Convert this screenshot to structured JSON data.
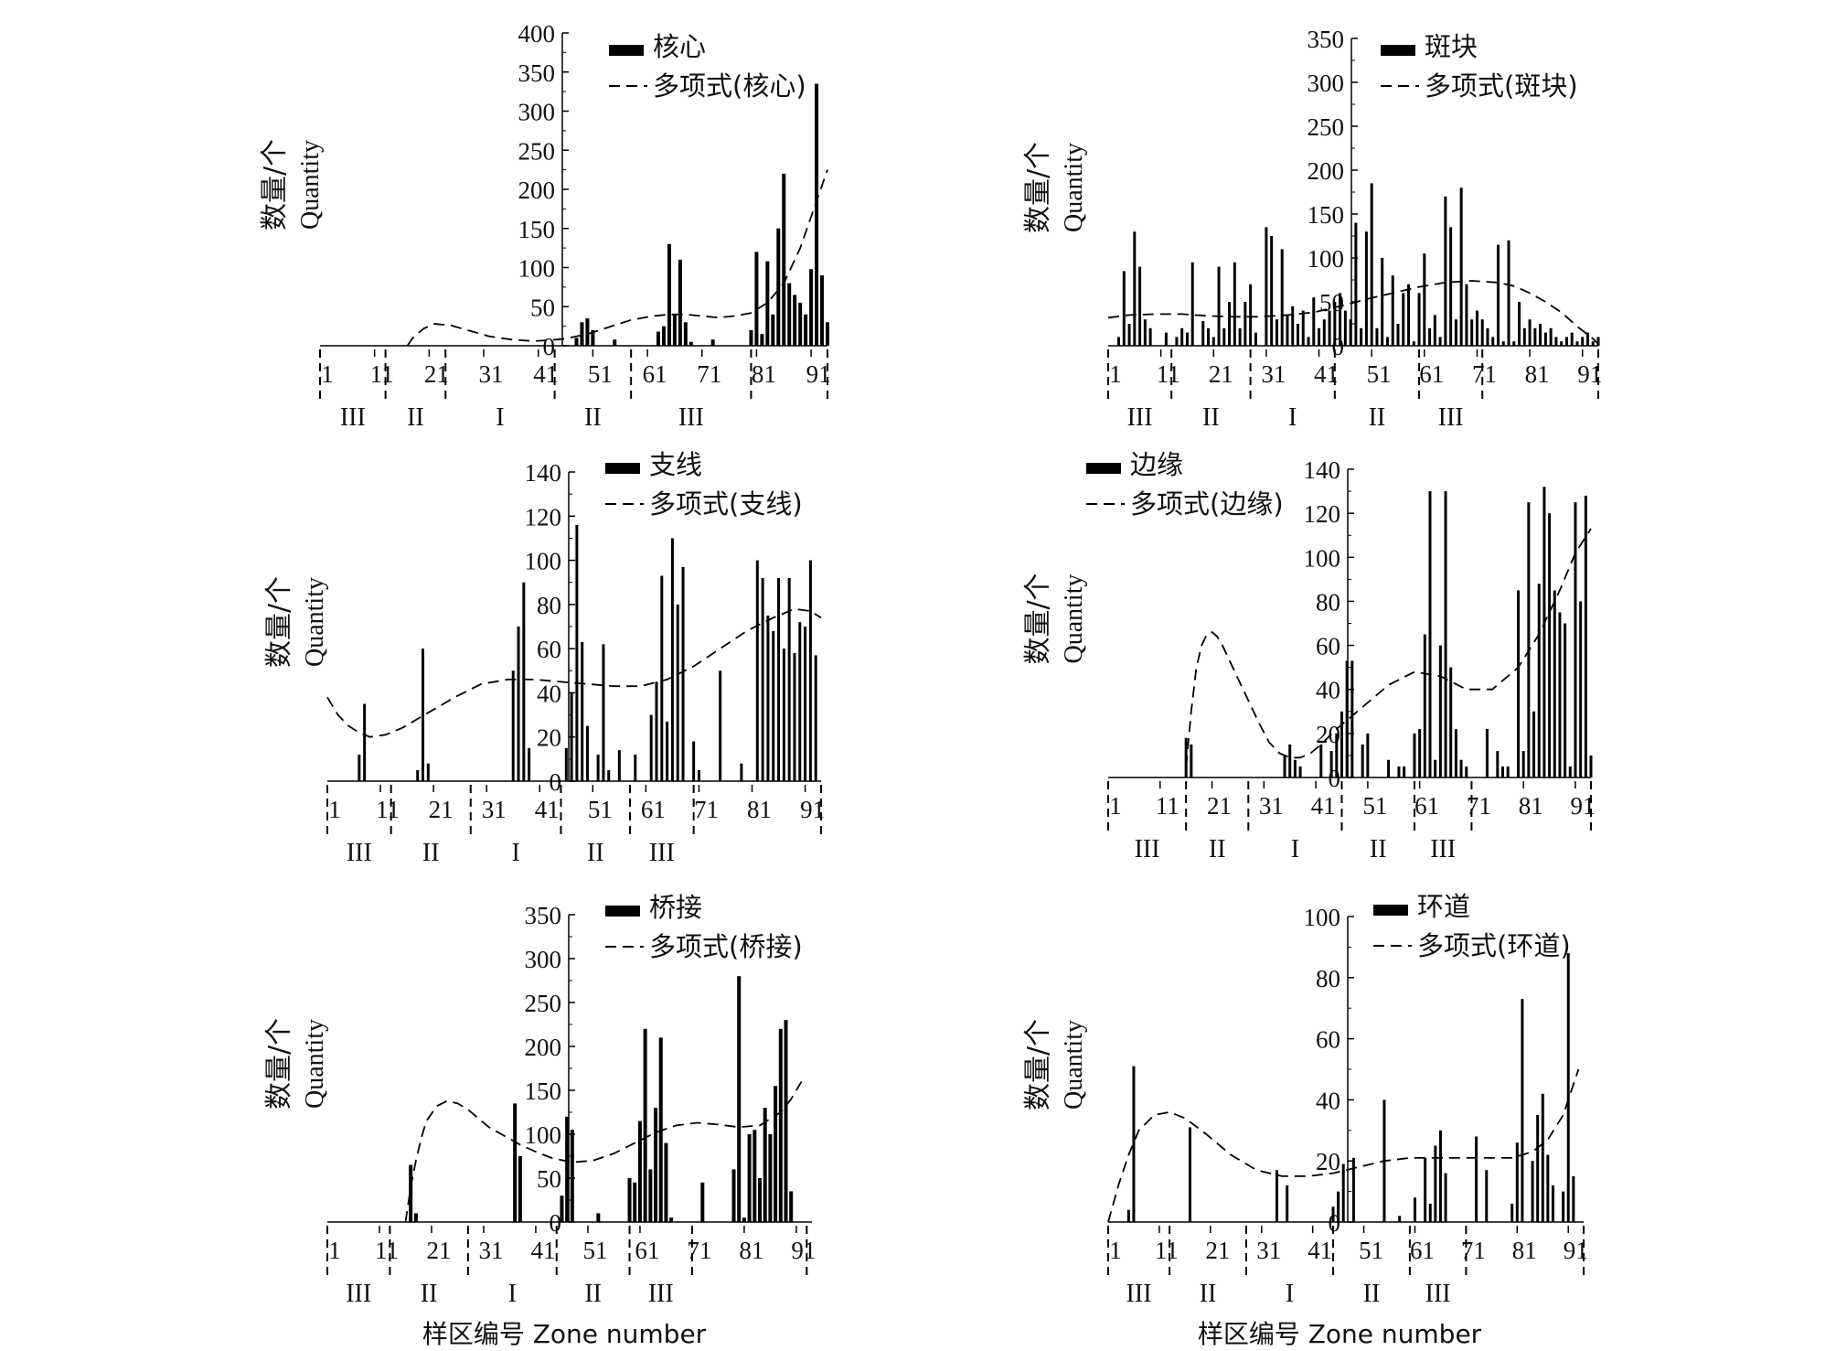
{
  "figure": {
    "xlabel": "样区编号 Zone number",
    "ylabel_cn": "数量/个",
    "ylabel_en": "Quantity"
  },
  "colors": {
    "bar": "#000000",
    "trend": "#000000",
    "axis": "#000000"
  },
  "chart_data": [
    {
      "type": "bar",
      "bar_label": "核心",
      "trend_label": "多项式(核心)",
      "ylim": [
        0,
        400
      ],
      "yticks": [
        "0",
        "50",
        "100",
        "150",
        "200",
        "250",
        "300",
        "350",
        "400"
      ],
      "xticks": [
        "1",
        "11",
        "21",
        "31",
        "41",
        "51",
        "61",
        "71",
        "81",
        "91"
      ],
      "zone_labels": [
        "III",
        "II",
        "I",
        "II",
        "III"
      ],
      "zone_starts": [
        1,
        13,
        24,
        44,
        58,
        80,
        94
      ],
      "x": [
        48,
        49,
        50,
        51,
        55,
        63,
        64,
        65,
        66,
        67,
        68,
        69,
        73,
        80,
        81,
        82,
        83,
        84,
        85,
        86,
        87,
        88,
        89,
        90,
        91,
        92,
        93,
        94
      ],
      "values": [
        10,
        30,
        35,
        20,
        8,
        18,
        25,
        130,
        40,
        110,
        30,
        5,
        8,
        20,
        120,
        15,
        108,
        40,
        150,
        220,
        80,
        65,
        55,
        40,
        98,
        335,
        90,
        30
      ],
      "trend": {
        "x": [
          17,
          18,
          20,
          22,
          25,
          28,
          32,
          36,
          40,
          43,
          46,
          50,
          54,
          58,
          62,
          65,
          68,
          71,
          74,
          77,
          80,
          83,
          86,
          89,
          91,
          93,
          94
        ],
        "y": [
          0,
          10,
          22,
          28,
          26,
          20,
          12,
          8,
          6,
          7,
          9,
          15,
          24,
          33,
          38,
          40,
          40,
          38,
          36,
          38,
          42,
          55,
          80,
          125,
          165,
          205,
          225
        ]
      }
    },
    {
      "type": "bar",
      "bar_label": "斑块",
      "trend_label": "多项式(斑块)",
      "ylim": [
        0,
        350
      ],
      "yticks": [
        "0",
        "50",
        "100",
        "150",
        "200",
        "250",
        "300",
        "350"
      ],
      "xticks": [
        "1",
        "11",
        "21",
        "31",
        "41",
        "51",
        "61",
        "71",
        "81",
        "91"
      ],
      "zone_labels": [
        "III",
        "II",
        "I",
        "II",
        "III"
      ],
      "zone_starts": [
        1,
        13,
        28,
        44,
        60,
        72,
        94
      ],
      "x": [
        3,
        4,
        5,
        6,
        7,
        8,
        9,
        12,
        14,
        15,
        16,
        17,
        19,
        20,
        21,
        22,
        23,
        24,
        25,
        26,
        27,
        28,
        29,
        31,
        32,
        33,
        34,
        35,
        36,
        37,
        38,
        39,
        40,
        41,
        42,
        43,
        44,
        45,
        46,
        47,
        48,
        49,
        50,
        51,
        52,
        53,
        54,
        55,
        56,
        57,
        58,
        59,
        60,
        61,
        62,
        63,
        64,
        65,
        66,
        67,
        68,
        69,
        70,
        71,
        72,
        73,
        74,
        75,
        76,
        77,
        78,
        79,
        80,
        81,
        82,
        83,
        84,
        85,
        86,
        87,
        88,
        89,
        90,
        91,
        92,
        93,
        94
      ],
      "values": [
        10,
        85,
        25,
        130,
        90,
        30,
        20,
        15,
        10,
        20,
        15,
        95,
        28,
        20,
        10,
        90,
        20,
        50,
        95,
        20,
        50,
        70,
        15,
        135,
        125,
        30,
        110,
        35,
        45,
        25,
        40,
        10,
        55,
        20,
        30,
        40,
        50,
        60,
        40,
        30,
        140,
        20,
        130,
        185,
        20,
        100,
        10,
        80,
        25,
        60,
        70,
        5,
        60,
        105,
        20,
        35,
        10,
        170,
        135,
        30,
        180,
        70,
        30,
        40,
        30,
        20,
        10,
        115,
        5,
        120,
        5,
        50,
        20,
        30,
        20,
        25,
        15,
        20,
        10,
        5,
        10,
        15,
        5,
        10,
        15,
        5,
        10
      ],
      "trend": {
        "x": [
          1,
          5,
          10,
          15,
          20,
          25,
          30,
          35,
          40,
          45,
          50,
          55,
          60,
          65,
          70,
          75,
          78,
          81,
          84,
          87,
          90,
          93,
          94
        ],
        "y": [
          32,
          35,
          36,
          36,
          34,
          33,
          33,
          35,
          38,
          45,
          53,
          60,
          67,
          72,
          74,
          72,
          68,
          60,
          50,
          38,
          22,
          8,
          2
        ]
      }
    },
    {
      "type": "bar",
      "bar_label": "支线",
      "trend_label": "多项式(支线)",
      "ylim": [
        0,
        140
      ],
      "yticks": [
        "0",
        "20",
        "40",
        "60",
        "80",
        "100",
        "120",
        "140"
      ],
      "xticks": [
        "1",
        "11",
        "21",
        "31",
        "41",
        "51",
        "61",
        "71",
        "81",
        "91"
      ],
      "zone_labels": [
        "III",
        "II",
        "I",
        "II",
        "III"
      ],
      "zone_starts": [
        1,
        13,
        28,
        45,
        58,
        70,
        94
      ],
      "x": [
        7,
        8,
        18,
        19,
        20,
        36,
        37,
        38,
        39,
        46,
        47,
        48,
        49,
        50,
        52,
        53,
        54,
        56,
        59,
        62,
        63,
        64,
        65,
        66,
        67,
        68,
        70,
        71,
        75,
        79,
        82,
        83,
        84,
        85,
        86,
        87,
        88,
        89,
        90,
        91,
        92,
        93
      ],
      "values": [
        12,
        35,
        5,
        60,
        8,
        50,
        70,
        90,
        15,
        15,
        40,
        116,
        63,
        25,
        12,
        62,
        5,
        14,
        12,
        30,
        45,
        93,
        27,
        110,
        80,
        97,
        18,
        5,
        50,
        8,
        100,
        92,
        75,
        68,
        92,
        60,
        92,
        58,
        72,
        70,
        100,
        57
      ],
      "trend": {
        "x": [
          1,
          3,
          5,
          7,
          9,
          12,
          15,
          20,
          25,
          30,
          35,
          40,
          45,
          50,
          55,
          60,
          65,
          70,
          75,
          80,
          85,
          89,
          92,
          94
        ],
        "y": [
          38,
          30,
          25,
          22,
          20,
          21,
          24,
          31,
          38,
          44,
          46,
          46,
          45,
          44,
          43,
          43,
          46,
          52,
          60,
          68,
          74,
          78,
          77,
          74
        ]
      }
    },
    {
      "type": "bar",
      "bar_label": "边缘",
      "trend_label": "多项式(边缘)",
      "ylim": [
        0,
        140
      ],
      "yticks": [
        "0",
        "20",
        "40",
        "60",
        "80",
        "100",
        "120",
        "140"
      ],
      "xticks": [
        "1",
        "11",
        "21",
        "31",
        "41",
        "51",
        "61",
        "71",
        "81",
        "91"
      ],
      "zone_labels": [
        "III",
        "II",
        "I",
        "II",
        "III"
      ],
      "zone_starts": [
        1,
        16,
        28,
        46,
        60,
        71,
        94
      ],
      "x": [
        16,
        17,
        35,
        36,
        37,
        38,
        42,
        44,
        45,
        46,
        47,
        48,
        50,
        51,
        55,
        57,
        58,
        60,
        61,
        62,
        63,
        64,
        65,
        66,
        67,
        68,
        69,
        70,
        74,
        76,
        77,
        78,
        80,
        81,
        82,
        83,
        84,
        85,
        86,
        87,
        88,
        89,
        90,
        91,
        92,
        93,
        94
      ],
      "values": [
        18,
        15,
        10,
        15,
        8,
        5,
        15,
        12,
        20,
        30,
        53,
        53,
        15,
        20,
        8,
        5,
        5,
        20,
        22,
        65,
        130,
        8,
        60,
        130,
        50,
        22,
        8,
        5,
        22,
        12,
        5,
        5,
        85,
        12,
        125,
        30,
        88,
        132,
        120,
        85,
        75,
        70,
        5,
        125,
        80,
        128,
        10
      ],
      "trend": {
        "x": [
          16,
          17,
          18,
          19,
          20,
          21,
          22,
          23,
          24,
          26,
          28,
          30,
          32,
          34,
          36,
          38,
          40,
          42,
          45,
          50,
          55,
          60,
          65,
          70,
          75,
          80,
          84,
          88,
          91,
          94
        ],
        "y": [
          5,
          30,
          50,
          60,
          65,
          66,
          64,
          60,
          55,
          45,
          35,
          25,
          16,
          11,
          9,
          9,
          11,
          15,
          22,
          32,
          42,
          48,
          46,
          40,
          40,
          50,
          65,
          85,
          102,
          113
        ]
      }
    },
    {
      "type": "bar",
      "bar_label": "桥接",
      "trend_label": "多项式(桥接)",
      "ylim": [
        0,
        350
      ],
      "yticks": [
        "0",
        "50",
        "100",
        "150",
        "200",
        "250",
        "300",
        "350"
      ],
      "xticks": [
        "1",
        "11",
        "21",
        "31",
        "41",
        "51",
        "61",
        "71",
        "81",
        "91"
      ],
      "zone_labels": [
        "III",
        "II",
        "I",
        "II",
        "III"
      ],
      "zone_starts": [
        1,
        13,
        28,
        45,
        59,
        71,
        93
      ],
      "x": [
        17,
        18,
        37,
        38,
        46,
        47,
        48,
        53,
        59,
        60,
        61,
        62,
        63,
        64,
        65,
        66,
        67,
        73,
        79,
        80,
        81,
        82,
        83,
        84,
        85,
        86,
        87,
        88,
        89,
        90
      ],
      "values": [
        65,
        10,
        135,
        75,
        30,
        120,
        105,
        10,
        50,
        45,
        115,
        220,
        60,
        130,
        210,
        90,
        5,
        45,
        60,
        280,
        5,
        100,
        105,
        50,
        130,
        100,
        155,
        220,
        230,
        35
      ],
      "trend": {
        "x": [
          16,
          17,
          18,
          19,
          20,
          22,
          24,
          26,
          28,
          30,
          32,
          35,
          38,
          41,
          44,
          48,
          52,
          56,
          60,
          64,
          68,
          72,
          76,
          80,
          84,
          88,
          90,
          92
        ],
        "y": [
          0,
          40,
          70,
          95,
          115,
          132,
          138,
          135,
          128,
          118,
          108,
          98,
          88,
          80,
          73,
          68,
          70,
          78,
          90,
          102,
          110,
          113,
          111,
          108,
          110,
          125,
          140,
          160
        ]
      }
    },
    {
      "type": "bar",
      "bar_label": "环道",
      "trend_label": "多项式(环道)",
      "ylim": [
        0,
        100
      ],
      "yticks": [
        "0",
        "20",
        "40",
        "60",
        "80",
        "100"
      ],
      "xticks": [
        "1",
        "11",
        "21",
        "31",
        "41",
        "51",
        "61",
        "71",
        "81",
        "91"
      ],
      "zone_labels": [
        "III",
        "II",
        "I",
        "II",
        "III"
      ],
      "zone_starts": [
        1,
        13,
        28,
        45,
        60,
        71,
        94
      ],
      "x": [
        5,
        6,
        17,
        34,
        36,
        45,
        46,
        47,
        49,
        55,
        58,
        61,
        63,
        64,
        65,
        66,
        67,
        73,
        75,
        80,
        81,
        82,
        84,
        85,
        86,
        87,
        88,
        90,
        91,
        92
      ],
      "values": [
        4,
        51,
        31,
        17,
        12,
        5,
        10,
        19,
        21,
        40,
        2,
        8,
        21,
        6,
        25,
        30,
        16,
        28,
        17,
        6,
        26,
        73,
        20,
        35,
        42,
        22,
        12,
        10,
        88,
        15
      ],
      "trend": {
        "x": [
          1,
          3,
          5,
          7,
          10,
          13,
          16,
          20,
          25,
          30,
          35,
          40,
          45,
          50,
          55,
          60,
          65,
          70,
          75,
          80,
          84,
          87,
          90,
          92,
          93
        ],
        "y": [
          0,
          12,
          22,
          30,
          35,
          36,
          34,
          29,
          22,
          17,
          15,
          15,
          16,
          18,
          20,
          21,
          21,
          21,
          21,
          21,
          23,
          27,
          35,
          45,
          50
        ]
      }
    }
  ]
}
